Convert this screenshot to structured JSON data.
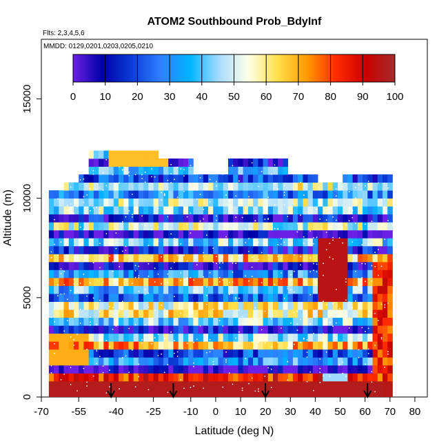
{
  "chart_data": {
    "type": "heatmap",
    "title": "ATOM2 Southbound Prob_BdyInf",
    "subtitle_lines": [
      "Flts: 2,3,4,5,6",
      "MMDD: 0129,0201,0203,0205,0210"
    ],
    "xlabel": "Latitude (deg N)",
    "ylabel": "Altitude (m)",
    "xlim": [
      -70,
      85
    ],
    "ylim": [
      0,
      18000
    ],
    "x_ticks": [
      -70,
      -55,
      -40,
      -25,
      -10,
      0,
      10,
      20,
      30,
      40,
      50,
      60,
      70,
      80
    ],
    "x_tick_labels": [
      "-70",
      "-55",
      "-40",
      "-25",
      "-10",
      "0",
      "10",
      "20",
      "30",
      "40",
      "50",
      "60",
      "70",
      "80"
    ],
    "y_ticks": [
      0,
      5000,
      10000,
      15000
    ],
    "y_tick_labels": [
      "0",
      "5000",
      "10000",
      "15000"
    ],
    "colorbar": {
      "min": 0,
      "max": 100,
      "ticks": [
        0,
        10,
        20,
        30,
        40,
        50,
        60,
        70,
        80,
        90,
        100
      ],
      "tick_labels": [
        "0",
        "10",
        "20",
        "30",
        "40",
        "50",
        "60",
        "70",
        "80",
        "90",
        "100"
      ],
      "colors": [
        "#6a20e6",
        "#0000a8",
        "#0a3cd8",
        "#2f80ff",
        "#00b4ff",
        "#a8dcff",
        "#ffffe6",
        "#ffe04a",
        "#ff9900",
        "#ff2a00",
        "#cc0000",
        "#a52a2a"
      ]
    },
    "arrows_latitude": [
      -42,
      -17,
      20,
      61
    ],
    "data_extent": {
      "lat_min": -67,
      "lat_max": 71,
      "alt_min": 0,
      "alt_max": 12500
    },
    "row_altitude_step": 400,
    "lat_step": 2
  }
}
